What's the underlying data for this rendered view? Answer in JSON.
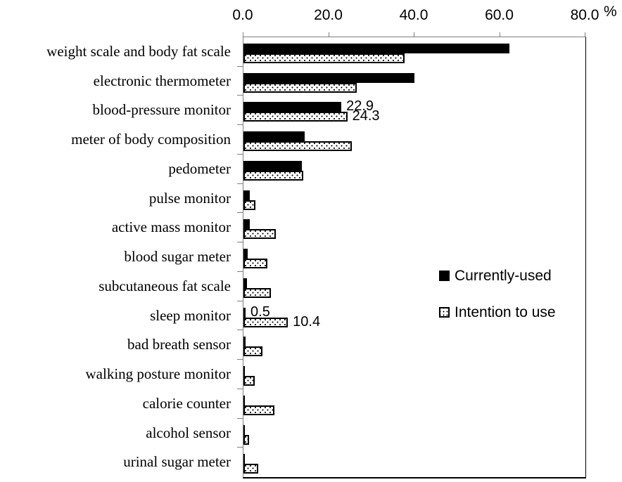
{
  "chart_data": {
    "type": "bar",
    "orientation": "horizontal",
    "title": "",
    "unit_label": "%",
    "x_axis": {
      "min": 0,
      "max": 80,
      "tick_values": [
        0,
        20,
        40,
        60,
        80
      ],
      "tick_labels": [
        "0.0",
        "20.0",
        "40.0",
        "60.0",
        "80.0"
      ]
    },
    "grid": false,
    "categories": [
      "weight scale and body fat scale",
      "electronic thermometer",
      "blood-pressure monitor",
      "meter of body composition",
      "pedometer",
      "pulse monitor",
      "active mass monitor",
      "blood sugar meter",
      "subcutaneous fat scale",
      "sleep monitor",
      "bad breath sensor",
      "walking posture monitor",
      "calorie counter",
      "alcohol sensor",
      "urinal sugar meter"
    ],
    "series": [
      {
        "name": "Currently-used",
        "swatch": "solid-black",
        "values": [
          62.3,
          40.0,
          22.9,
          14.3,
          13.7,
          1.4,
          1.4,
          1.0,
          0.8,
          0.5,
          0.5,
          0.3,
          0.4,
          0.2,
          0.3
        ]
      },
      {
        "name": "Intention to use",
        "swatch": "dotted-white",
        "values": [
          37.7,
          26.5,
          24.3,
          25.4,
          14.0,
          2.8,
          7.6,
          5.6,
          6.5,
          10.4,
          4.4,
          2.6,
          7.2,
          1.3,
          3.4
        ]
      }
    ],
    "data_labels": [
      {
        "category": 2,
        "series": 0,
        "text": "22.9"
      },
      {
        "category": 2,
        "series": 1,
        "text": "24.3"
      },
      {
        "category": 9,
        "series": 0,
        "text": "0.5"
      },
      {
        "category": 9,
        "series": 1,
        "text": "10.4"
      }
    ],
    "legend": {
      "position": "middle-right",
      "items": [
        "Currently-used",
        "Intention to use"
      ]
    },
    "colors": {
      "bar_solid": "#000000",
      "dotted_fill": "#ffffff",
      "dotted_dot": "#000000",
      "axis_line": "#7f7f7f",
      "text": "#000000",
      "background": "#ffffff"
    }
  }
}
